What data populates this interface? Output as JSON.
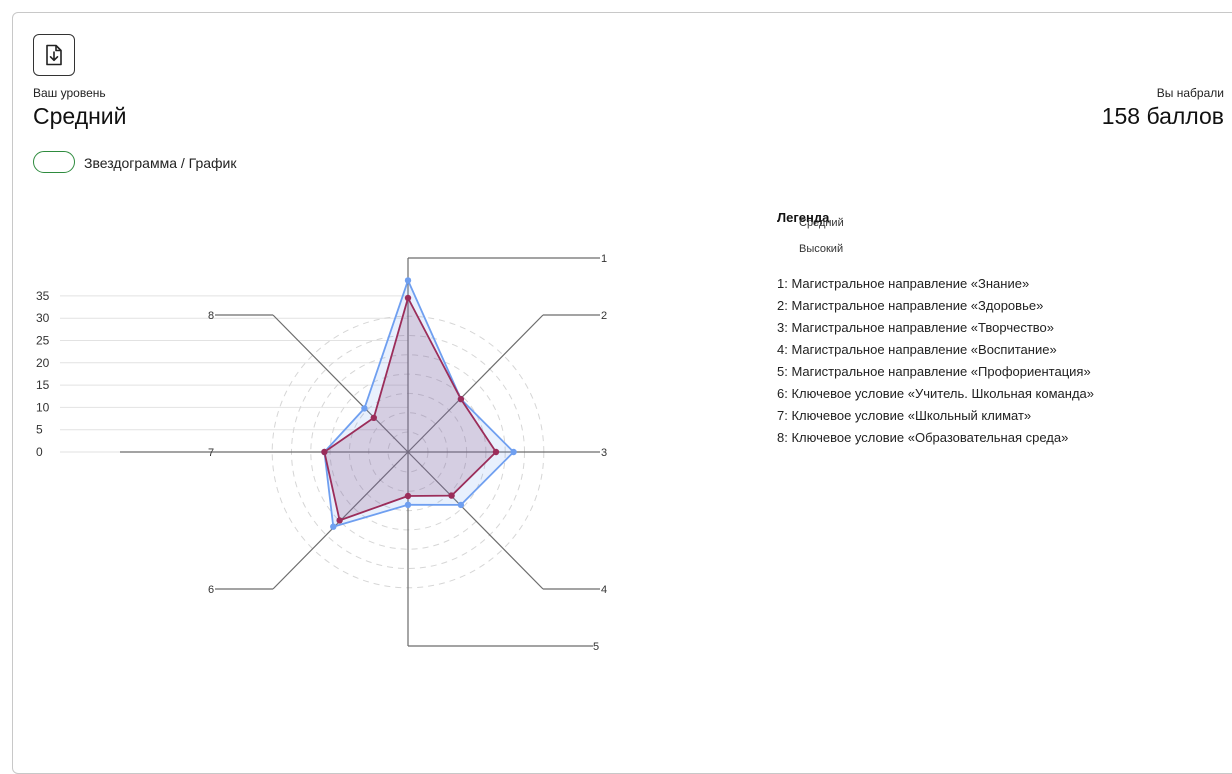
{
  "level": {
    "caption": "Ваш уровень",
    "value": "Средний"
  },
  "score": {
    "caption": "Вы набрали",
    "value": "158 баллов"
  },
  "toggle": {
    "label": "Звездограмма / График"
  },
  "download_icon": "file-download-icon",
  "legend": {
    "title": "Легенда",
    "series": [
      "Средний",
      "Высокий"
    ],
    "axes": [
      "1: Магистральное направление «Знание»",
      "2: Магистральное направление «Здоровье»",
      "3: Магистральное направление «Творчество»",
      "4: Магистральное направление «Воспитание»",
      "5: Магистральное направление «Профориентация»",
      "6: Ключевое условие «Учитель. Школьная команда»",
      "7: Ключевое условие «Школьный климат»",
      "8: Ключевое условие «Образовательная среда»"
    ]
  },
  "colors": {
    "medium": "#9b2d5a",
    "high": "#6f9ff0",
    "toggle": "#2e8b3e"
  },
  "chart_data": {
    "type": "radar",
    "axes": [
      "1",
      "2",
      "3",
      "4",
      "5",
      "6",
      "7",
      "8"
    ],
    "ticks": [
      "0",
      "5",
      "10",
      "15",
      "20",
      "25",
      "30",
      "35"
    ],
    "rmax": 35,
    "series": [
      {
        "name": "Средний",
        "values": [
          35,
          17,
          20,
          14,
          10,
          22,
          19,
          11
        ]
      },
      {
        "name": "Высокий",
        "values": [
          39,
          17,
          24,
          17,
          12,
          24,
          19,
          14
        ]
      }
    ]
  }
}
